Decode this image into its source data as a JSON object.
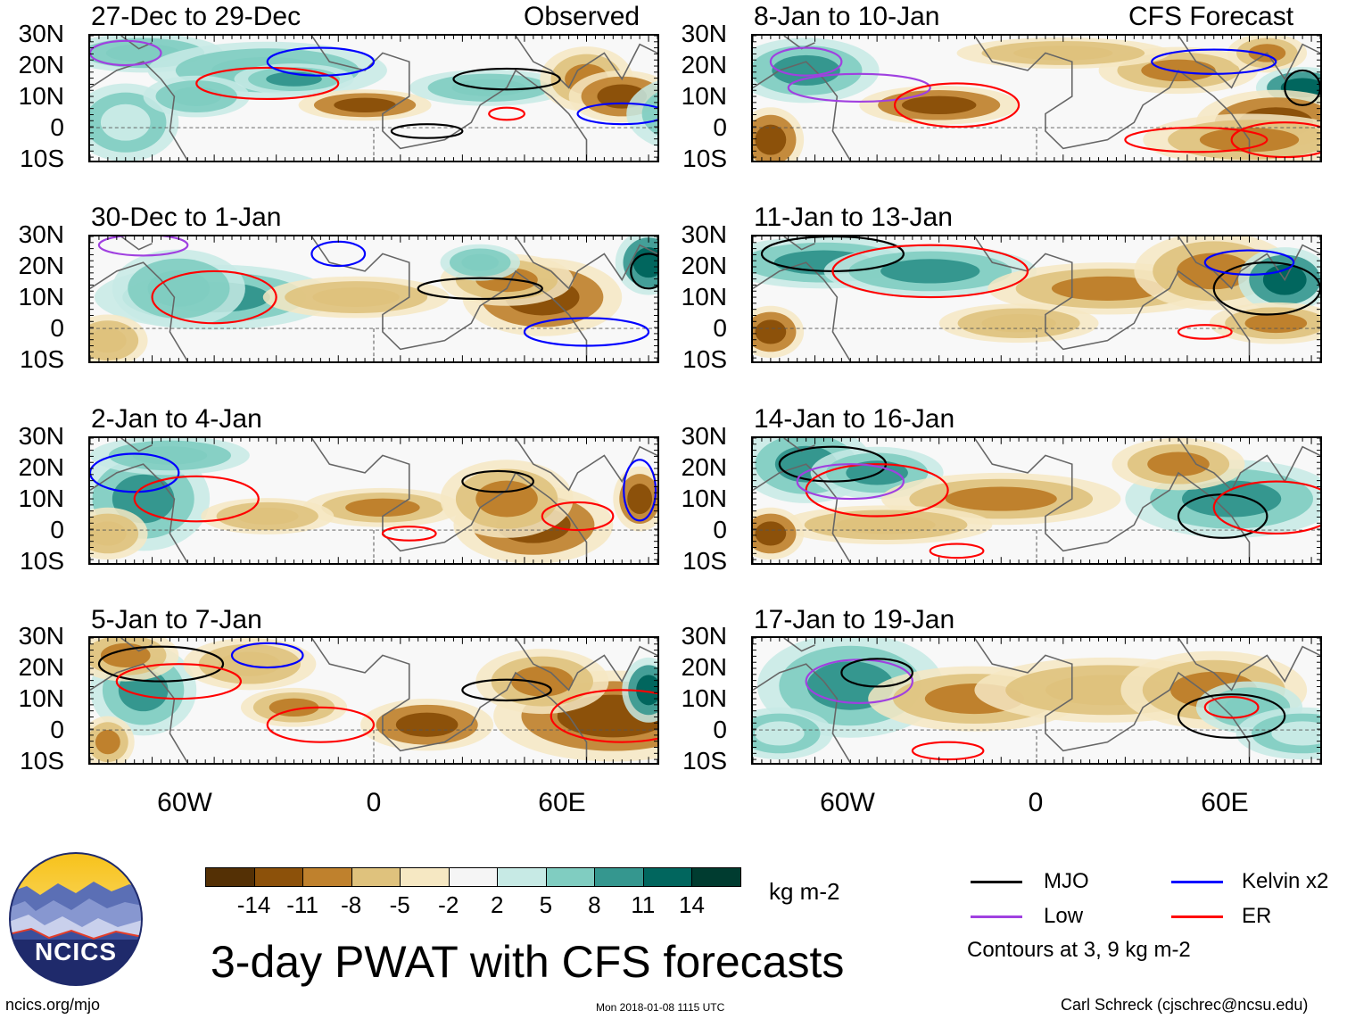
{
  "title": "3-day PWAT with CFS forecasts",
  "observed_label": "Observed",
  "forecast_label": "CFS Forecast",
  "lat_labels": [
    "30N",
    "20N",
    "10N",
    "0",
    "10S"
  ],
  "lon_labels": [
    "60W",
    "0",
    "60E"
  ],
  "panels": {
    "observed": [
      {
        "label": "27-Dec to 29-Dec"
      },
      {
        "label": "30-Dec to 1-Jan"
      },
      {
        "label": "2-Jan to 4-Jan"
      },
      {
        "label": "5-Jan to 7-Jan"
      }
    ],
    "forecast": [
      {
        "label": "8-Jan to 10-Jan"
      },
      {
        "label": "11-Jan to 13-Jan"
      },
      {
        "label": "14-Jan to 16-Jan"
      },
      {
        "label": "17-Jan to 19-Jan"
      }
    ]
  },
  "colorbar": {
    "ticks": [
      "-14",
      "-11",
      "-8",
      "-5",
      "-2",
      "2",
      "5",
      "8",
      "11",
      "14"
    ],
    "units": "kg m-2",
    "colors": [
      "#543005",
      "#8c510a",
      "#bf812d",
      "#dfc27d",
      "#f6e8c3",
      "#f5f5f5",
      "#c7eae5",
      "#80cdc1",
      "#35978f",
      "#01665e",
      "#003c30"
    ]
  },
  "legend": {
    "items": [
      {
        "label": "MJO",
        "color": "#000000"
      },
      {
        "label": "Kelvin x2",
        "color": "#0000ff"
      },
      {
        "label": "Low",
        "color": "#a040e0"
      },
      {
        "label": "ER",
        "color": "#ff0000"
      }
    ],
    "note": "Contours at 3, 9 kg m-2"
  },
  "logo": {
    "text": "NCICS"
  },
  "footer": {
    "site": "ncics.org/mjo",
    "timestamp": "Mon 2018-01-08 1115 UTC",
    "author": "Carl Schreck (cjschrec@ncsu.edu)"
  }
}
